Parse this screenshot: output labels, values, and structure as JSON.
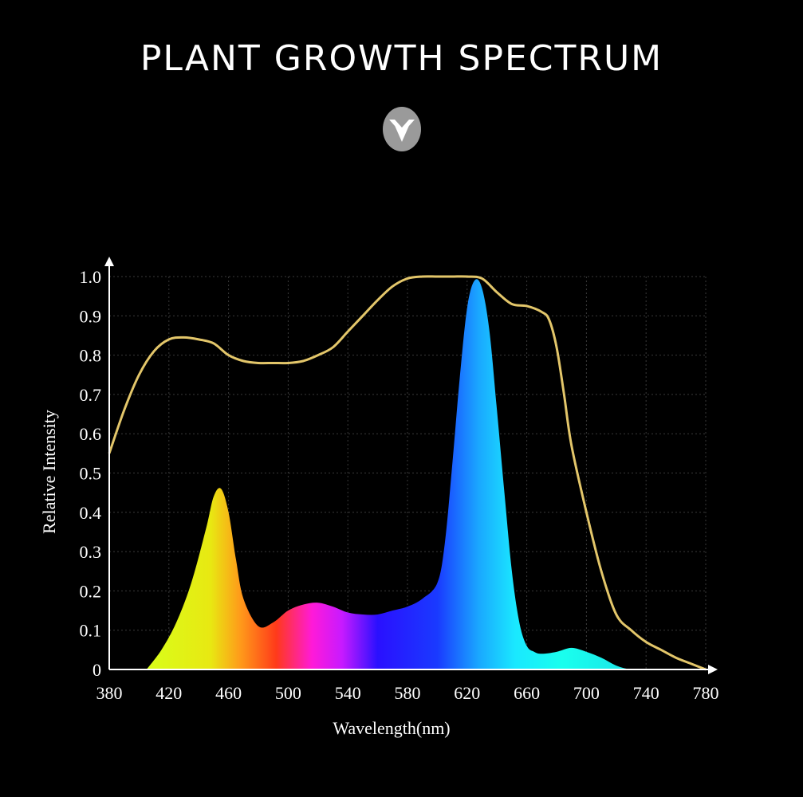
{
  "title": "PLANT GROWTH SPECTRUM",
  "badge_icon": "chevron-down-icon",
  "colors": {
    "background": "#000000",
    "envelope_line": "#e3c66a",
    "grid": "#3a3a3a",
    "axis": "#ffffff"
  },
  "chart_data": {
    "type": "area",
    "title": "PLANT GROWTH SPECTRUM",
    "xlabel": "Wavelength(nm)",
    "ylabel": "Relative Intensity",
    "xlim": [
      380,
      780
    ],
    "ylim": [
      0,
      1.0
    ],
    "x_ticks": [
      "380",
      "420",
      "460",
      "500",
      "540",
      "580",
      "620",
      "660",
      "700",
      "740",
      "780"
    ],
    "y_ticks": [
      "0",
      "0.1",
      "0.2",
      "0.3",
      "0.4",
      "0.5",
      "0.6",
      "0.7",
      "0.8",
      "0.9",
      "1.0"
    ],
    "grid": true,
    "series": [
      {
        "style": "filled-rainbow-area",
        "x": [
          405,
          415,
          425,
          435,
          445,
          450,
          455,
          460,
          465,
          470,
          480,
          490,
          500,
          510,
          520,
          530,
          540,
          550,
          560,
          570,
          580,
          590,
          600,
          605,
          610,
          615,
          620,
          625,
          630,
          635,
          640,
          645,
          650,
          655,
          660,
          665,
          670,
          680,
          690,
          700,
          710,
          720,
          730,
          740,
          750,
          760
        ],
        "y": [
          0,
          0.05,
          0.12,
          0.22,
          0.36,
          0.44,
          0.46,
          0.4,
          0.28,
          0.18,
          0.11,
          0.12,
          0.15,
          0.165,
          0.17,
          0.16,
          0.145,
          0.14,
          0.14,
          0.15,
          0.16,
          0.18,
          0.22,
          0.32,
          0.52,
          0.74,
          0.92,
          0.99,
          0.97,
          0.86,
          0.66,
          0.45,
          0.25,
          0.12,
          0.06,
          0.045,
          0.04,
          0.045,
          0.055,
          0.045,
          0.03,
          0.01,
          0,
          0,
          0,
          0
        ]
      },
      {
        "style": "envelope-line",
        "x": [
          380,
          390,
          400,
          410,
          420,
          430,
          440,
          450,
          460,
          470,
          480,
          490,
          500,
          510,
          520,
          530,
          540,
          550,
          560,
          570,
          580,
          590,
          600,
          610,
          620,
          630,
          640,
          650,
          660,
          670,
          675,
          680,
          685,
          690,
          700,
          710,
          720,
          730,
          740,
          750,
          760,
          770,
          780
        ],
        "y": [
          0.55,
          0.66,
          0.75,
          0.81,
          0.84,
          0.845,
          0.84,
          0.83,
          0.8,
          0.785,
          0.78,
          0.78,
          0.78,
          0.785,
          0.8,
          0.82,
          0.86,
          0.9,
          0.94,
          0.975,
          0.995,
          1.0,
          1.0,
          1.0,
          1.0,
          0.995,
          0.96,
          0.93,
          0.925,
          0.91,
          0.89,
          0.82,
          0.7,
          0.57,
          0.4,
          0.25,
          0.14,
          0.1,
          0.07,
          0.05,
          0.03,
          0.015,
          0
        ]
      }
    ]
  }
}
